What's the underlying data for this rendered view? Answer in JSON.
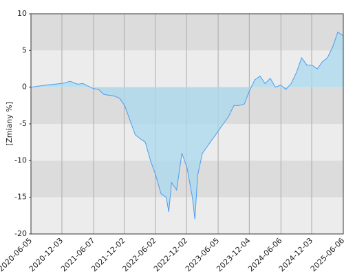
{
  "chart_data": {
    "type": "area",
    "y_label": "[Zmiany %]",
    "color": "#4a9ef0",
    "fill_color": "#a9d9ee",
    "ylim": [
      -20,
      10
    ],
    "yticks": [
      -20,
      -15,
      -10,
      -5,
      0,
      5,
      10
    ],
    "xlim": [
      "2020-06-05",
      "2025-06-06"
    ],
    "xticks": [
      "2020-06-05",
      "2020-12-03",
      "2021-06-07",
      "2021-12-02",
      "2022-06-02",
      "2022-12-02",
      "2023-06-05",
      "2023-12-04",
      "2024-06-06",
      "2024-12-03",
      "2025-06-06"
    ],
    "grid": true,
    "x": [
      "2020-06-05",
      "2020-09-05",
      "2020-12-05",
      "2021-01-20",
      "2021-03-05",
      "2021-04-05",
      "2021-06-05",
      "2021-07-05",
      "2021-08-05",
      "2021-10-05",
      "2021-11-05",
      "2021-12-05",
      "2022-01-05",
      "2022-02-05",
      "2022-03-05",
      "2022-04-05",
      "2022-05-05",
      "2022-06-05",
      "2022-07-05",
      "2022-08-05",
      "2022-08-20",
      "2022-09-05",
      "2022-10-05",
      "2022-11-05",
      "2022-12-05",
      "2023-01-05",
      "2023-01-20",
      "2023-02-05",
      "2023-03-05",
      "2023-04-05",
      "2023-05-05",
      "2023-06-05",
      "2023-07-05",
      "2023-08-05",
      "2023-09-05",
      "2023-10-05",
      "2023-11-05",
      "2023-12-05",
      "2024-01-05",
      "2024-02-05",
      "2024-03-05",
      "2024-04-05",
      "2024-05-05",
      "2024-06-05",
      "2024-07-05",
      "2024-08-05",
      "2024-09-05",
      "2024-10-05",
      "2024-11-05",
      "2024-12-05",
      "2025-01-05",
      "2025-02-05",
      "2025-03-05",
      "2025-04-05",
      "2025-05-05",
      "2025-06-06"
    ],
    "values": [
      0,
      0.3,
      0.5,
      0.8,
      0.4,
      0.5,
      -0.2,
      -0.3,
      -1.0,
      -1.2,
      -1.5,
      -2.5,
      -4.5,
      -6.5,
      -7,
      -7.5,
      -10,
      -12,
      -14.5,
      -15,
      -17,
      -13,
      -14,
      -9,
      -11,
      -15,
      -18,
      -12,
      -9,
      -8,
      -7,
      -6,
      -5,
      -4,
      -2.5,
      -2.5,
      -2.3,
      -0.5,
      1,
      1.5,
      0.5,
      1.2,
      0,
      0.3,
      -0.3,
      0.5,
      2,
      4,
      3,
      3,
      2.5,
      3.5,
      4,
      5.5,
      7.5,
      7
    ]
  }
}
